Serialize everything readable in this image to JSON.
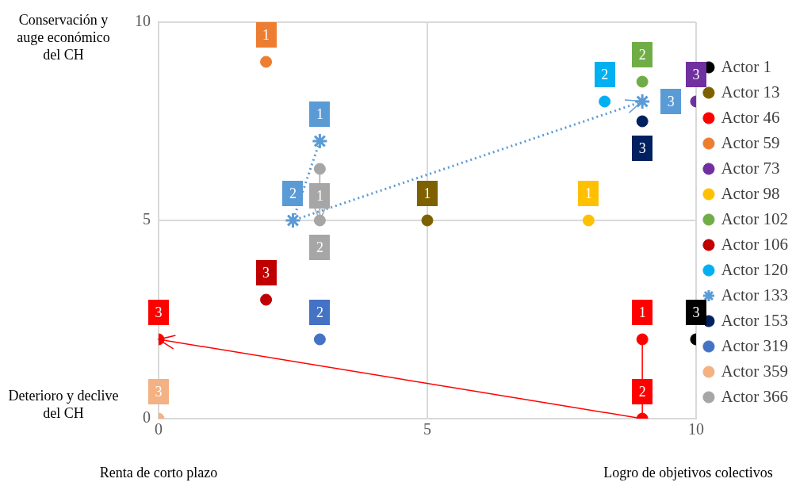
{
  "chart_data": {
    "type": "scatter",
    "xlim": [
      0,
      10
    ],
    "ylim": [
      0,
      10
    ],
    "xticks": [
      0,
      5,
      10
    ],
    "yticks": [
      0,
      5,
      10
    ],
    "grid": true,
    "legend": "right",
    "marker": "circle",
    "annotations": [
      "Conservación y auge económico del CH",
      "Deterioro y declive del CH",
      "Renta de corto plazo",
      "Logro de objetivos colectivos",
      {
        "text": "3",
        "x": 10,
        "y": 2
      },
      {
        "text": "1",
        "x": 5,
        "y": 5
      },
      {
        "text": "1",
        "x": 9,
        "y": 2
      },
      {
        "text": "2",
        "x": 9,
        "y": 0
      },
      {
        "text": "3",
        "x": 0,
        "y": 2
      },
      {
        "text": "1",
        "x": 2,
        "y": 9
      },
      {
        "text": "3",
        "x": 10,
        "y": 8
      },
      {
        "text": "1",
        "x": 8,
        "y": 5
      },
      {
        "text": "2",
        "x": 9,
        "y": 8.5
      },
      {
        "text": "3",
        "x": 2,
        "y": 3
      },
      {
        "text": "2",
        "x": 8.3,
        "y": 8
      },
      {
        "text": "1",
        "x": 3,
        "y": 7
      },
      {
        "text": "2",
        "x": 2.5,
        "y": 5
      },
      {
        "text": "3",
        "x": 9,
        "y": 8
      },
      {
        "text": "3",
        "x": 9,
        "y": 7.5
      },
      {
        "text": "2",
        "x": 3,
        "y": 2
      },
      {
        "text": "3",
        "x": 0,
        "y": 0
      },
      {
        "text": "1",
        "x": 3,
        "y": 6.3
      },
      {
        "text": "2",
        "x": 3,
        "y": 5
      }
    ],
    "series": [
      {
        "name": "Actor 1",
        "color": "#000000",
        "x": [
          10
        ],
        "values": [
          2
        ]
      },
      {
        "name": "Actor 13",
        "color": "#7f6000",
        "x": [
          5
        ],
        "values": [
          5
        ]
      },
      {
        "name": "Actor 46",
        "color": "#ff0000",
        "type": "line",
        "line_style": "solid",
        "x": [
          9,
          9,
          0
        ],
        "values": [
          2,
          0,
          2
        ]
      },
      {
        "name": "Actor 59",
        "color": "#ed7d31",
        "x": [
          2
        ],
        "values": [
          9
        ]
      },
      {
        "name": "Actor 73",
        "color": "#7030a0",
        "x": [
          10
        ],
        "values": [
          8
        ]
      },
      {
        "name": "Actor 98",
        "color": "#ffc000",
        "x": [
          8
        ],
        "values": [
          5
        ]
      },
      {
        "name": "Actor 102",
        "color": "#70ad47",
        "x": [
          9
        ],
        "values": [
          8.5
        ]
      },
      {
        "name": "Actor 106",
        "color": "#c00000",
        "x": [
          2
        ],
        "values": [
          3
        ]
      },
      {
        "name": "Actor 120",
        "color": "#00b0f0",
        "x": [
          8.3
        ],
        "values": [
          8
        ]
      },
      {
        "name": "Actor 133",
        "color": "#5b9bd5",
        "type": "line",
        "line_style": "dotted",
        "marker": "cross",
        "x": [
          3,
          2.5,
          9
        ],
        "values": [
          7,
          5,
          8
        ]
      },
      {
        "name": "Actor 153",
        "color": "#002060",
        "x": [
          9
        ],
        "values": [
          7.5
        ]
      },
      {
        "name": "Actor 319",
        "color": "#4472c4",
        "x": [
          3
        ],
        "values": [
          2
        ]
      },
      {
        "name": "Actor 359",
        "color": "#f4b183",
        "x": [
          0
        ],
        "values": [
          0
        ]
      },
      {
        "name": "Actor 366",
        "color": "#a6a6a6",
        "type": "line",
        "line_style": "solid",
        "x": [
          3,
          3
        ],
        "values": [
          6.3,
          5
        ]
      }
    ]
  }
}
